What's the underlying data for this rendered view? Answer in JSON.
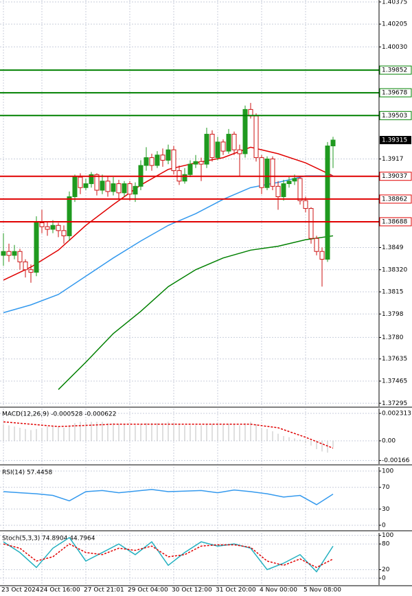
{
  "chart_data": [
    {
      "type": "candlestick",
      "open": [
        1.3843,
        1.3846,
        1.3843,
        1.3846,
        1.3838,
        1.3832,
        1.383,
        1.3868,
        1.3865,
        1.3863,
        1.3866,
        1.3862,
        1.3858,
        1.3888,
        1.3903,
        1.3895,
        1.3898,
        1.3905,
        1.3893,
        1.39,
        1.3892,
        1.3898,
        1.3891,
        1.3898,
        1.389,
        1.3896,
        1.3912,
        1.3918,
        1.3912,
        1.392,
        1.3916,
        1.3924,
        1.3908,
        1.39,
        1.3905,
        1.3913,
        1.3915,
        1.3913,
        1.3936,
        1.3918,
        1.393,
        1.3923,
        1.3936,
        1.3924,
        1.3921,
        1.3955,
        1.395,
        1.3918,
        1.3895,
        1.3917,
        1.3896,
        1.3888,
        1.3898,
        1.39,
        1.3902,
        1.3885,
        1.3879,
        1.3856,
        1.3846,
        1.384,
        1.3927
      ],
      "high": [
        1.386,
        1.3852,
        1.3851,
        1.3848,
        1.384,
        1.3836,
        1.3873,
        1.3878,
        1.3869,
        1.387,
        1.3868,
        1.3866,
        1.3892,
        1.3905,
        1.3906,
        1.3902,
        1.3907,
        1.3906,
        1.3905,
        1.3904,
        1.3903,
        1.3901,
        1.39,
        1.39,
        1.3899,
        1.3916,
        1.3926,
        1.3921,
        1.3923,
        1.3925,
        1.3928,
        1.3927,
        1.3912,
        1.391,
        1.3916,
        1.392,
        1.3918,
        1.3941,
        1.3939,
        1.3934,
        1.3932,
        1.394,
        1.3938,
        1.3928,
        1.3958,
        1.396,
        1.3952,
        1.392,
        1.3919,
        1.3919,
        1.39,
        1.3901,
        1.3903,
        1.3905,
        1.3904,
        1.3888,
        1.388,
        1.3858,
        1.3849,
        1.393,
        1.3934
      ],
      "low": [
        1.3835,
        1.3838,
        1.384,
        1.3832,
        1.3826,
        1.3822,
        1.3827,
        1.386,
        1.3858,
        1.386,
        1.3857,
        1.3852,
        1.3854,
        1.3884,
        1.389,
        1.3893,
        1.3895,
        1.3889,
        1.389,
        1.3888,
        1.3889,
        1.3886,
        1.3888,
        1.3885,
        1.3884,
        1.3893,
        1.3908,
        1.3908,
        1.391,
        1.3911,
        1.3913,
        1.3905,
        1.3897,
        1.3898,
        1.3903,
        1.391,
        1.39,
        1.391,
        1.3915,
        1.3916,
        1.392,
        1.3921,
        1.392,
        1.3904,
        1.3918,
        1.3948,
        1.3915,
        1.389,
        1.3893,
        1.3893,
        1.3878,
        1.3885,
        1.3895,
        1.3897,
        1.3882,
        1.3876,
        1.3852,
        1.3843,
        1.3819,
        1.3838,
        1.391
      ],
      "close": [
        1.3846,
        1.3843,
        1.3846,
        1.3838,
        1.3832,
        1.383,
        1.3868,
        1.3865,
        1.3863,
        1.3866,
        1.3862,
        1.3858,
        1.3888,
        1.3903,
        1.3895,
        1.3898,
        1.3905,
        1.3893,
        1.39,
        1.3892,
        1.3898,
        1.3891,
        1.3898,
        1.389,
        1.3896,
        1.3912,
        1.3918,
        1.3912,
        1.392,
        1.3916,
        1.3924,
        1.3908,
        1.39,
        1.3905,
        1.3913,
        1.3915,
        1.3913,
        1.3936,
        1.3918,
        1.393,
        1.3923,
        1.3936,
        1.3924,
        1.3921,
        1.3955,
        1.395,
        1.3918,
        1.3895,
        1.3917,
        1.3896,
        1.3888,
        1.3898,
        1.39,
        1.3902,
        1.3885,
        1.3879,
        1.3856,
        1.3846,
        1.384,
        1.3927,
        1.39315
      ],
      "bull_color": "#1f9a1f",
      "bear_color": "#cc1111",
      "xlim": [
        -0.625,
        68.375
      ],
      "ylim": [
        1.3727,
        1.4039
      ],
      "yticks": [
        1.40375,
        1.40205,
        {
          "value": 1.4003,
          "label": "1.40030"
        },
        1.3917,
        1.3849,
        {
          "value": 1.3832,
          "label": "1.38320"
        },
        1.3815,
        1.3798,
        {
          "value": 1.378,
          "label": "1.3780"
        },
        1.37635,
        1.37465,
        1.37295
      ],
      "xticks": [
        {
          "value": 0,
          "label": "23 Oct 2024"
        },
        {
          "value": 7,
          "label": "24 Oct 16:00"
        },
        {
          "value": 15,
          "label": "27 Oct 21:01"
        },
        {
          "value": 23,
          "label": "29 Oct 04:00"
        },
        {
          "value": 31,
          "label": "30 Oct 12:00"
        },
        {
          "value": 39,
          "label": "31 Oct 20:00"
        },
        {
          "value": 47,
          "label": "4 Nov 00:00"
        },
        {
          "value": 55,
          "label": "5 Nov 08:00"
        }
      ],
      "grid": true,
      "moving_averages": [
        {
          "color": "#e00000",
          "x": [
            0,
            5,
            10,
            15,
            20,
            25,
            30,
            35,
            40,
            45,
            50,
            55,
            60
          ],
          "values": [
            1.3824,
            1.3834,
            1.3847,
            1.3866,
            1.3882,
            1.3897,
            1.3909,
            1.3914,
            1.3918,
            1.3926,
            1.3921,
            1.3914,
            1.3904
          ]
        },
        {
          "color": "#3399ee",
          "x": [
            0,
            5,
            10,
            15,
            20,
            25,
            30,
            35,
            40,
            45,
            50,
            55,
            60
          ],
          "values": [
            1.3799,
            1.3805,
            1.3813,
            1.3827,
            1.3841,
            1.3854,
            1.3866,
            1.3875,
            1.3886,
            1.3895,
            1.3899,
            1.3904,
            1.3904
          ]
        },
        {
          "color": "#008000",
          "x": [
            0,
            5,
            10,
            15,
            20,
            25,
            30,
            35,
            40,
            45,
            50,
            55,
            60
          ],
          "values": [
            null,
            null,
            1.374,
            1.3761,
            1.3783,
            1.38,
            1.3819,
            1.3832,
            1.3841,
            1.3847,
            1.385,
            1.3855,
            1.3858
          ]
        }
      ],
      "levels": [
        {
          "value": 1.39852,
          "color": "#008000"
        },
        {
          "value": 1.39678,
          "color": "#008000"
        },
        {
          "value": 1.39503,
          "color": "#008000"
        },
        {
          "value": 1.39037,
          "color": "#e00000"
        },
        {
          "value": 1.38862,
          "color": "#e00000"
        },
        {
          "value": 1.38688,
          "color": "#e00000"
        }
      ],
      "last_price": 1.39315
    },
    {
      "type": "macd",
      "title": "MACD(12,26,9) -0.000528 -0.000622",
      "histogram": [
        0.0014,
        0.0013,
        0.0012,
        0.0011,
        0.001,
        0.0009,
        0.001,
        0.0011,
        0.0012,
        0.0012,
        0.0012,
        0.0011,
        0.0013,
        0.0015,
        0.0016,
        0.0016,
        0.0016,
        0.0016,
        0.0016,
        0.0015,
        0.0015,
        0.0014,
        0.0014,
        0.0013,
        0.0013,
        0.0014,
        0.0015,
        0.0015,
        0.0015,
        0.0015,
        0.0016,
        0.0015,
        0.0014,
        0.0013,
        0.0013,
        0.0013,
        0.0013,
        0.0014,
        0.0014,
        0.0014,
        0.0014,
        0.0014,
        0.0014,
        0.0013,
        0.0015,
        0.0016,
        0.0014,
        0.0011,
        0.001,
        0.0008,
        0.0006,
        0.0004,
        0.0003,
        0.0002,
        0.0001,
        -0.0002,
        -0.0004,
        -0.0007,
        -0.0009,
        -0.001,
        -0.000528
      ],
      "histogram_color": "#bfbfbf",
      "signal": {
        "x": [
          0,
          5,
          10,
          15,
          20,
          25,
          30,
          35,
          40,
          45,
          50,
          55,
          60
        ],
        "values": [
          0.0016,
          0.0014,
          0.0012,
          0.0013,
          0.0014,
          0.0014,
          0.0014,
          0.0014,
          0.0014,
          0.0014,
          0.0011,
          0.0003,
          -0.000622
        ],
        "color": "#e00000",
        "dashed": true
      },
      "ylim": [
        -0.00197,
        0.00272
      ],
      "yticks": [
        0.002313,
        {
          "value": 0,
          "label": "0.00"
        },
        -0.00166
      ]
    },
    {
      "type": "rsi",
      "title": "RSI(14) 57.4458",
      "x": [
        0,
        3,
        6,
        9,
        12,
        15,
        18,
        21,
        24,
        27,
        30,
        33,
        36,
        39,
        42,
        45,
        48,
        51,
        54,
        57,
        60
      ],
      "values": [
        62,
        60,
        58,
        55,
        45,
        62,
        64,
        60,
        63,
        66,
        62,
        63,
        64,
        60,
        65,
        62,
        58,
        52,
        55,
        38,
        57.4458
      ],
      "color": "#3399ee",
      "ylim": [
        -8.9,
        107.6
      ],
      "yticks": [
        100,
        70,
        30,
        0
      ]
    },
    {
      "type": "stochastic",
      "title": "Stoch(5,3,3) 74.8904 44.7964",
      "series": [
        {
          "x": [
            0,
            3,
            6,
            9,
            12,
            15,
            18,
            21,
            24,
            27,
            30,
            33,
            36,
            39,
            42,
            45,
            48,
            51,
            54,
            57,
            60
          ],
          "values": [
            85,
            60,
            25,
            70,
            95,
            40,
            60,
            80,
            55,
            85,
            30,
            60,
            85,
            75,
            80,
            70,
            20,
            35,
            55,
            15,
            74.8904
          ],
          "color": "#22b0c0",
          "dashed": false
        },
        {
          "x": [
            0,
            3,
            6,
            9,
            12,
            15,
            18,
            21,
            24,
            27,
            30,
            33,
            36,
            39,
            42,
            45,
            48,
            51,
            54,
            57,
            60
          ],
          "values": [
            80,
            70,
            40,
            50,
            80,
            60,
            55,
            70,
            65,
            75,
            50,
            55,
            75,
            78,
            78,
            72,
            40,
            30,
            45,
            25,
            44.7964
          ],
          "color": "#e00000",
          "dashed": true
        }
      ],
      "ylim": [
        -16,
        106
      ],
      "yticks": [
        100,
        80,
        20,
        0
      ]
    }
  ]
}
